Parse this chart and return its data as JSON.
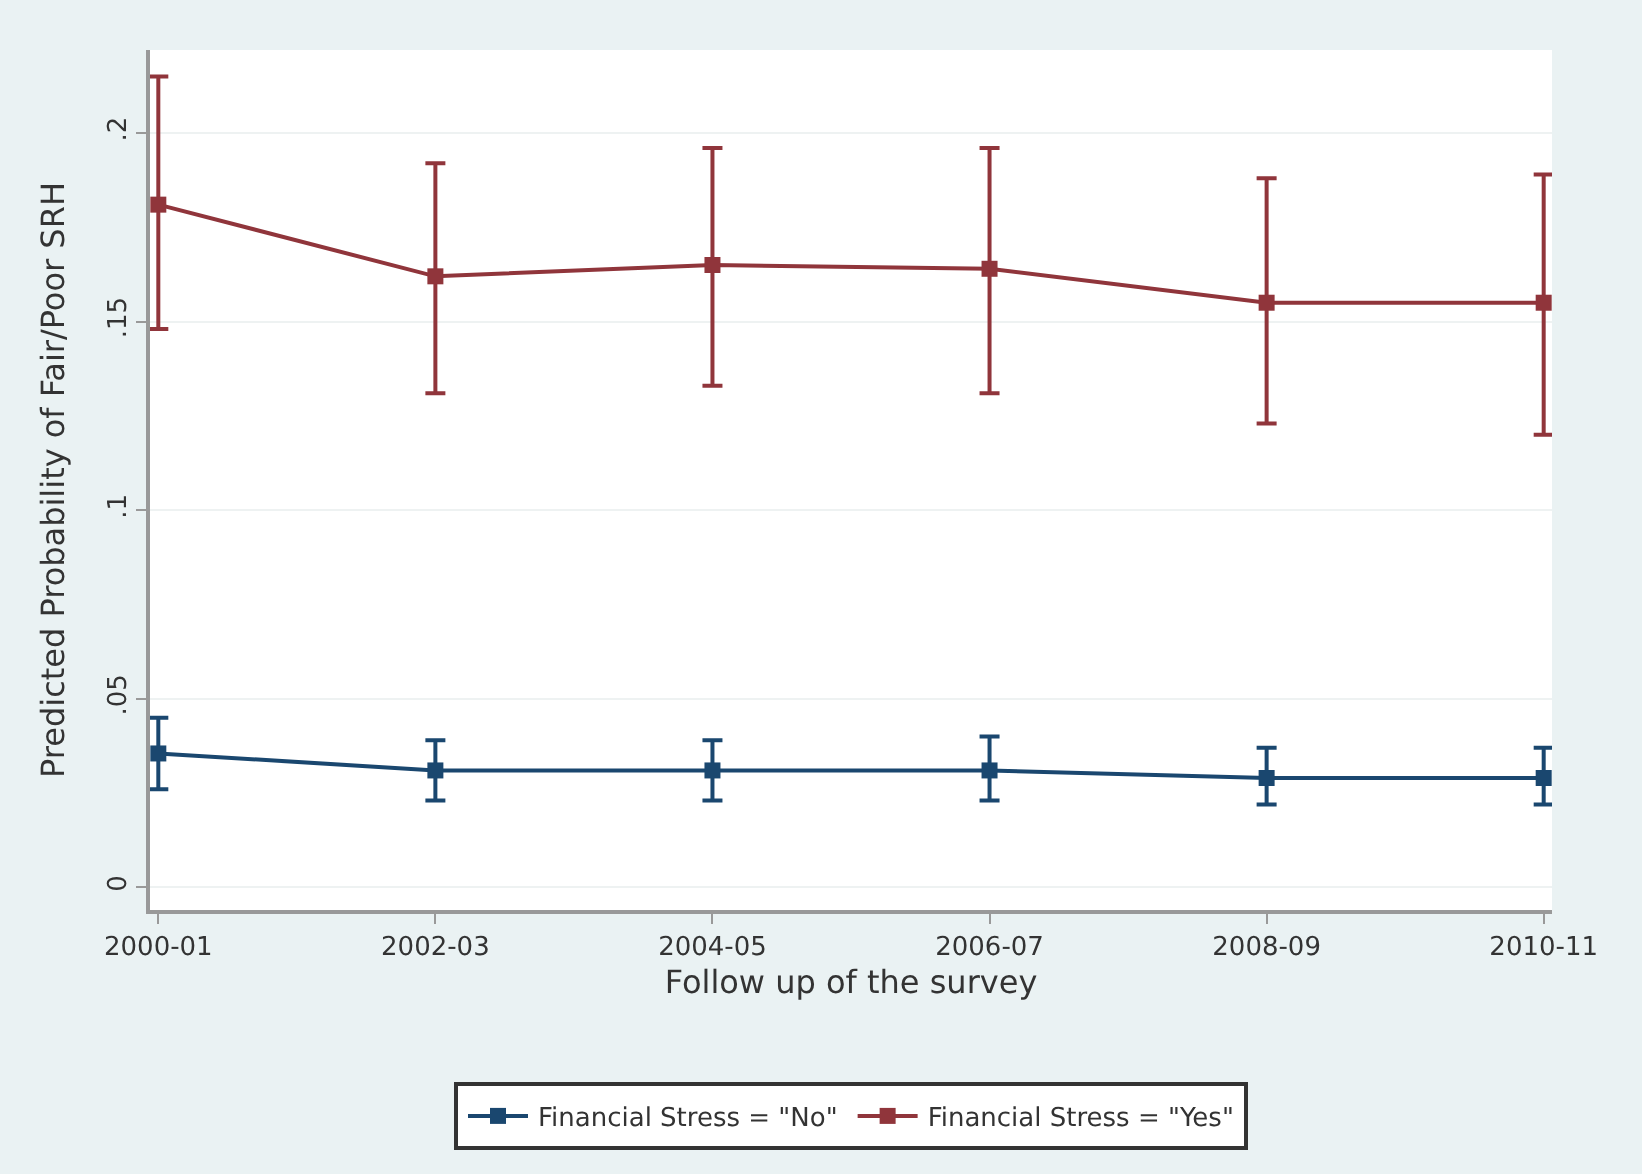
{
  "chart_data": {
    "type": "line",
    "xlabel": "Follow up of the survey",
    "ylabel": "Predicted Probability of Fair/Poor SRH",
    "categories": [
      "2000-01",
      "2002-03",
      "2004-05",
      "2006-07",
      "2008-09",
      "2010-11"
    ],
    "series": [
      {
        "name": "Financial Stress = \"No\"",
        "color": "#1a476f",
        "values": [
          0.0355,
          0.031,
          0.031,
          0.031,
          0.029,
          0.029
        ],
        "errors": [
          [
            0.026,
            0.045
          ],
          [
            0.023,
            0.039
          ],
          [
            0.023,
            0.039
          ],
          [
            0.023,
            0.04
          ],
          [
            0.022,
            0.037
          ],
          [
            0.022,
            0.037
          ]
        ]
      },
      {
        "name": "Financial Stress = \"Yes\"",
        "color": "#90353b",
        "values": [
          0.181,
          0.162,
          0.165,
          0.164,
          0.155,
          0.155
        ],
        "errors": [
          [
            0.148,
            0.215
          ],
          [
            0.131,
            0.192
          ],
          [
            0.133,
            0.196
          ],
          [
            0.131,
            0.196
          ],
          [
            0.123,
            0.188
          ],
          [
            0.12,
            0.189
          ]
        ]
      }
    ],
    "ylim": [
      -0.006,
      0.222
    ],
    "yticks": [
      0,
      {
        "value": 0.05,
        "label": ".05"
      },
      {
        "value": 0.1,
        "label": ".1"
      },
      {
        "value": 0.15,
        "label": ".15"
      },
      {
        "value": 0.2,
        "label": ".2"
      }
    ],
    "grid": "y",
    "legend": "bottom",
    "marker": "square",
    "line_style": "solid"
  }
}
